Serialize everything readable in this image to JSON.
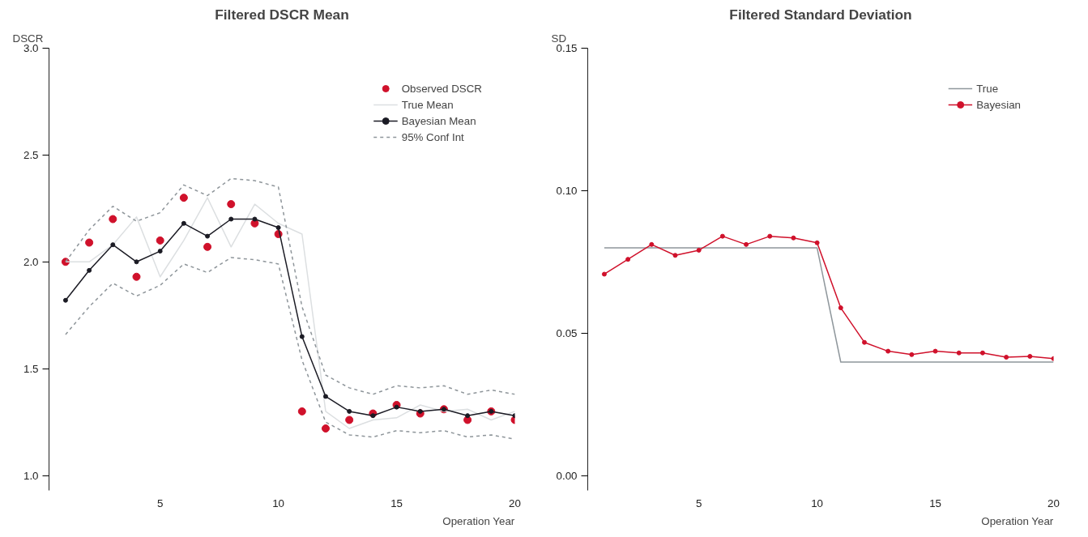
{
  "chart_data": [
    {
      "type": "line",
      "title": "Filtered DSCR Mean",
      "ylabel": "DSCR",
      "xlabel": "Operation Year",
      "x": [
        1,
        2,
        3,
        4,
        5,
        6,
        7,
        8,
        9,
        10,
        11,
        12,
        13,
        14,
        15,
        16,
        17,
        18,
        19,
        20
      ],
      "xlim": [
        0.3,
        20
      ],
      "xticks": [
        5,
        10,
        15,
        20
      ],
      "ylim": [
        0.93,
        3.0
      ],
      "yticks": [
        {
          "value": 1.0,
          "label": "1.0"
        },
        {
          "value": 1.5,
          "label": "1.5"
        },
        {
          "value": 2.0,
          "label": "2.0"
        },
        {
          "value": 2.5,
          "label": "2.5"
        },
        {
          "value": 3.0,
          "label": "3.0"
        }
      ],
      "grid": false,
      "legend": "top right",
      "series": [
        {
          "name": "Observed DSCR",
          "type": "scatter",
          "marker": "circle",
          "color": "#d0112b",
          "values": [
            2.0,
            2.09,
            2.2,
            1.93,
            2.1,
            2.3,
            2.07,
            2.27,
            2.18,
            2.13,
            1.3,
            1.22,
            1.26,
            1.29,
            1.33,
            1.29,
            1.31,
            1.26,
            1.3,
            1.26
          ]
        },
        {
          "name": "True Mean",
          "marker": "none",
          "line_style": "solid",
          "color": "#dcdfe1",
          "values": [
            2.0,
            2.0,
            2.08,
            2.21,
            1.93,
            2.1,
            2.3,
            2.07,
            2.27,
            2.18,
            2.13,
            1.3,
            1.22,
            1.26,
            1.27,
            1.33,
            1.3,
            1.31,
            1.26,
            1.3
          ]
        },
        {
          "name": "Bayesian Mean",
          "marker": "circle",
          "line_style": "solid",
          "color": "#1b1b24",
          "values": [
            1.82,
            1.96,
            2.08,
            2.0,
            2.05,
            2.18,
            2.12,
            2.2,
            2.2,
            2.16,
            1.65,
            1.37,
            1.3,
            1.28,
            1.32,
            1.3,
            1.31,
            1.28,
            1.3,
            1.28
          ]
        },
        {
          "name": "95% Conf Int",
          "marker": "none",
          "line_style": "dashed",
          "color": "#8e959a",
          "values": [
            2.0,
            2.15,
            2.26,
            2.19,
            2.23,
            2.36,
            2.31,
            2.39,
            2.38,
            2.35,
            1.79,
            1.47,
            1.41,
            1.38,
            1.42,
            1.41,
            1.42,
            1.38,
            1.4,
            1.38
          ]
        },
        {
          "marker": "none",
          "line_style": "dashed",
          "color": "#8e959a",
          "values": [
            1.66,
            1.79,
            1.9,
            1.84,
            1.89,
            1.99,
            1.95,
            2.02,
            2.01,
            1.99,
            1.54,
            1.25,
            1.19,
            1.18,
            1.21,
            1.2,
            1.21,
            1.18,
            1.19,
            1.17
          ]
        }
      ]
    },
    {
      "type": "line",
      "title": "Filtered Standard Deviation",
      "ylabel": "SD",
      "xlabel": "Operation Year",
      "x": [
        1,
        2,
        3,
        4,
        5,
        6,
        7,
        8,
        9,
        10,
        11,
        12,
        13,
        14,
        15,
        16,
        17,
        18,
        19,
        20
      ],
      "xlim": [
        0.3,
        20
      ],
      "xticks": [
        5,
        10,
        15,
        20
      ],
      "ylim": [
        -0.005,
        0.15
      ],
      "yticks": [
        {
          "value": 0,
          "label": "0.00"
        },
        {
          "value": 0.05,
          "label": "0.05"
        },
        {
          "value": 0.1,
          "label": "0.10"
        },
        {
          "value": 0.15,
          "label": "0.15"
        }
      ],
      "grid": false,
      "legend": "top right",
      "series": [
        {
          "name": "True",
          "marker": "none",
          "line_style": "solid",
          "color": "#8f979c",
          "values": [
            0.08,
            0.08,
            0.08,
            0.08,
            0.08,
            0.08,
            0.08,
            0.08,
            0.08,
            0.08,
            0.04,
            0.04,
            0.04,
            0.04,
            0.04,
            0.04,
            0.04,
            0.04,
            0.04,
            0.04
          ]
        },
        {
          "name": "Bayesian",
          "marker": "circle",
          "line_style": "solid",
          "color": "#d0112b",
          "values": [
            0.0708,
            0.076,
            0.0812,
            0.0774,
            0.0792,
            0.0841,
            0.0812,
            0.0841,
            0.0835,
            0.0818,
            0.059,
            0.0469,
            0.0438,
            0.0426,
            0.0438,
            0.0432,
            0.0432,
            0.0417,
            0.042,
            0.0412
          ]
        }
      ]
    }
  ]
}
